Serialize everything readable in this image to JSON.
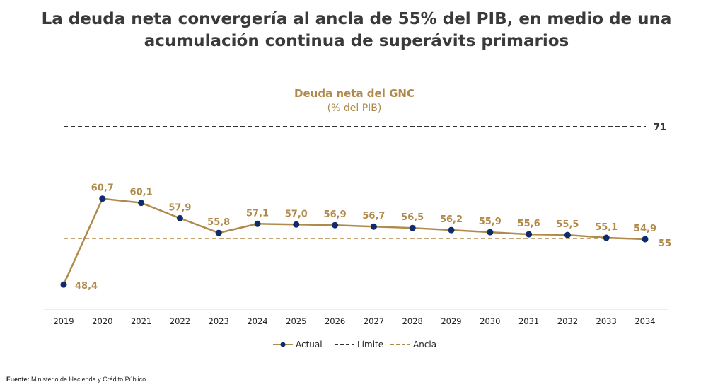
{
  "title": {
    "line1": "La deuda neta convergería al ancla de 55% del PIB, en medio de una",
    "line2": "acumulación continua de superávits primarios"
  },
  "source": {
    "label": "Fuente:",
    "text": "Ministerio de Hacienda y Crédito Público."
  },
  "chart_data": {
    "type": "line",
    "title": "Deuda neta del GNC",
    "subtitle": "(% del PIB)",
    "categories": [
      "2019",
      "2020",
      "2021",
      "2022",
      "2023",
      "2024",
      "2025",
      "2026",
      "2027",
      "2028",
      "2029",
      "2030",
      "2031",
      "2032",
      "2033",
      "2034"
    ],
    "series": [
      {
        "name": "Actual",
        "color": "#b08a4a",
        "marker_color": "#0f2b6b",
        "values": [
          48.4,
          60.7,
          60.1,
          57.9,
          55.8,
          57.1,
          57.0,
          56.9,
          56.7,
          56.5,
          56.2,
          55.9,
          55.6,
          55.5,
          55.1,
          54.9
        ],
        "value_labels": [
          "48,4",
          "60,7",
          "60,1",
          "57,9",
          "55,8",
          "57,1",
          "57,0",
          "56,9",
          "56,7",
          "56,5",
          "56,2",
          "55,9",
          "55,6",
          "55,5",
          "55,1",
          "54,9"
        ]
      }
    ],
    "reference_lines": [
      {
        "name": "Límite",
        "value": 71,
        "label": "71",
        "color": "#333333",
        "style": "dashed"
      },
      {
        "name": "Ancla",
        "value": 55,
        "label": "55",
        "color": "#b08a4a",
        "style": "dashed"
      }
    ],
    "ylim": [
      45,
      73
    ],
    "label_color": "#b08a4a",
    "legend_position": "bottom",
    "grid": false
  }
}
